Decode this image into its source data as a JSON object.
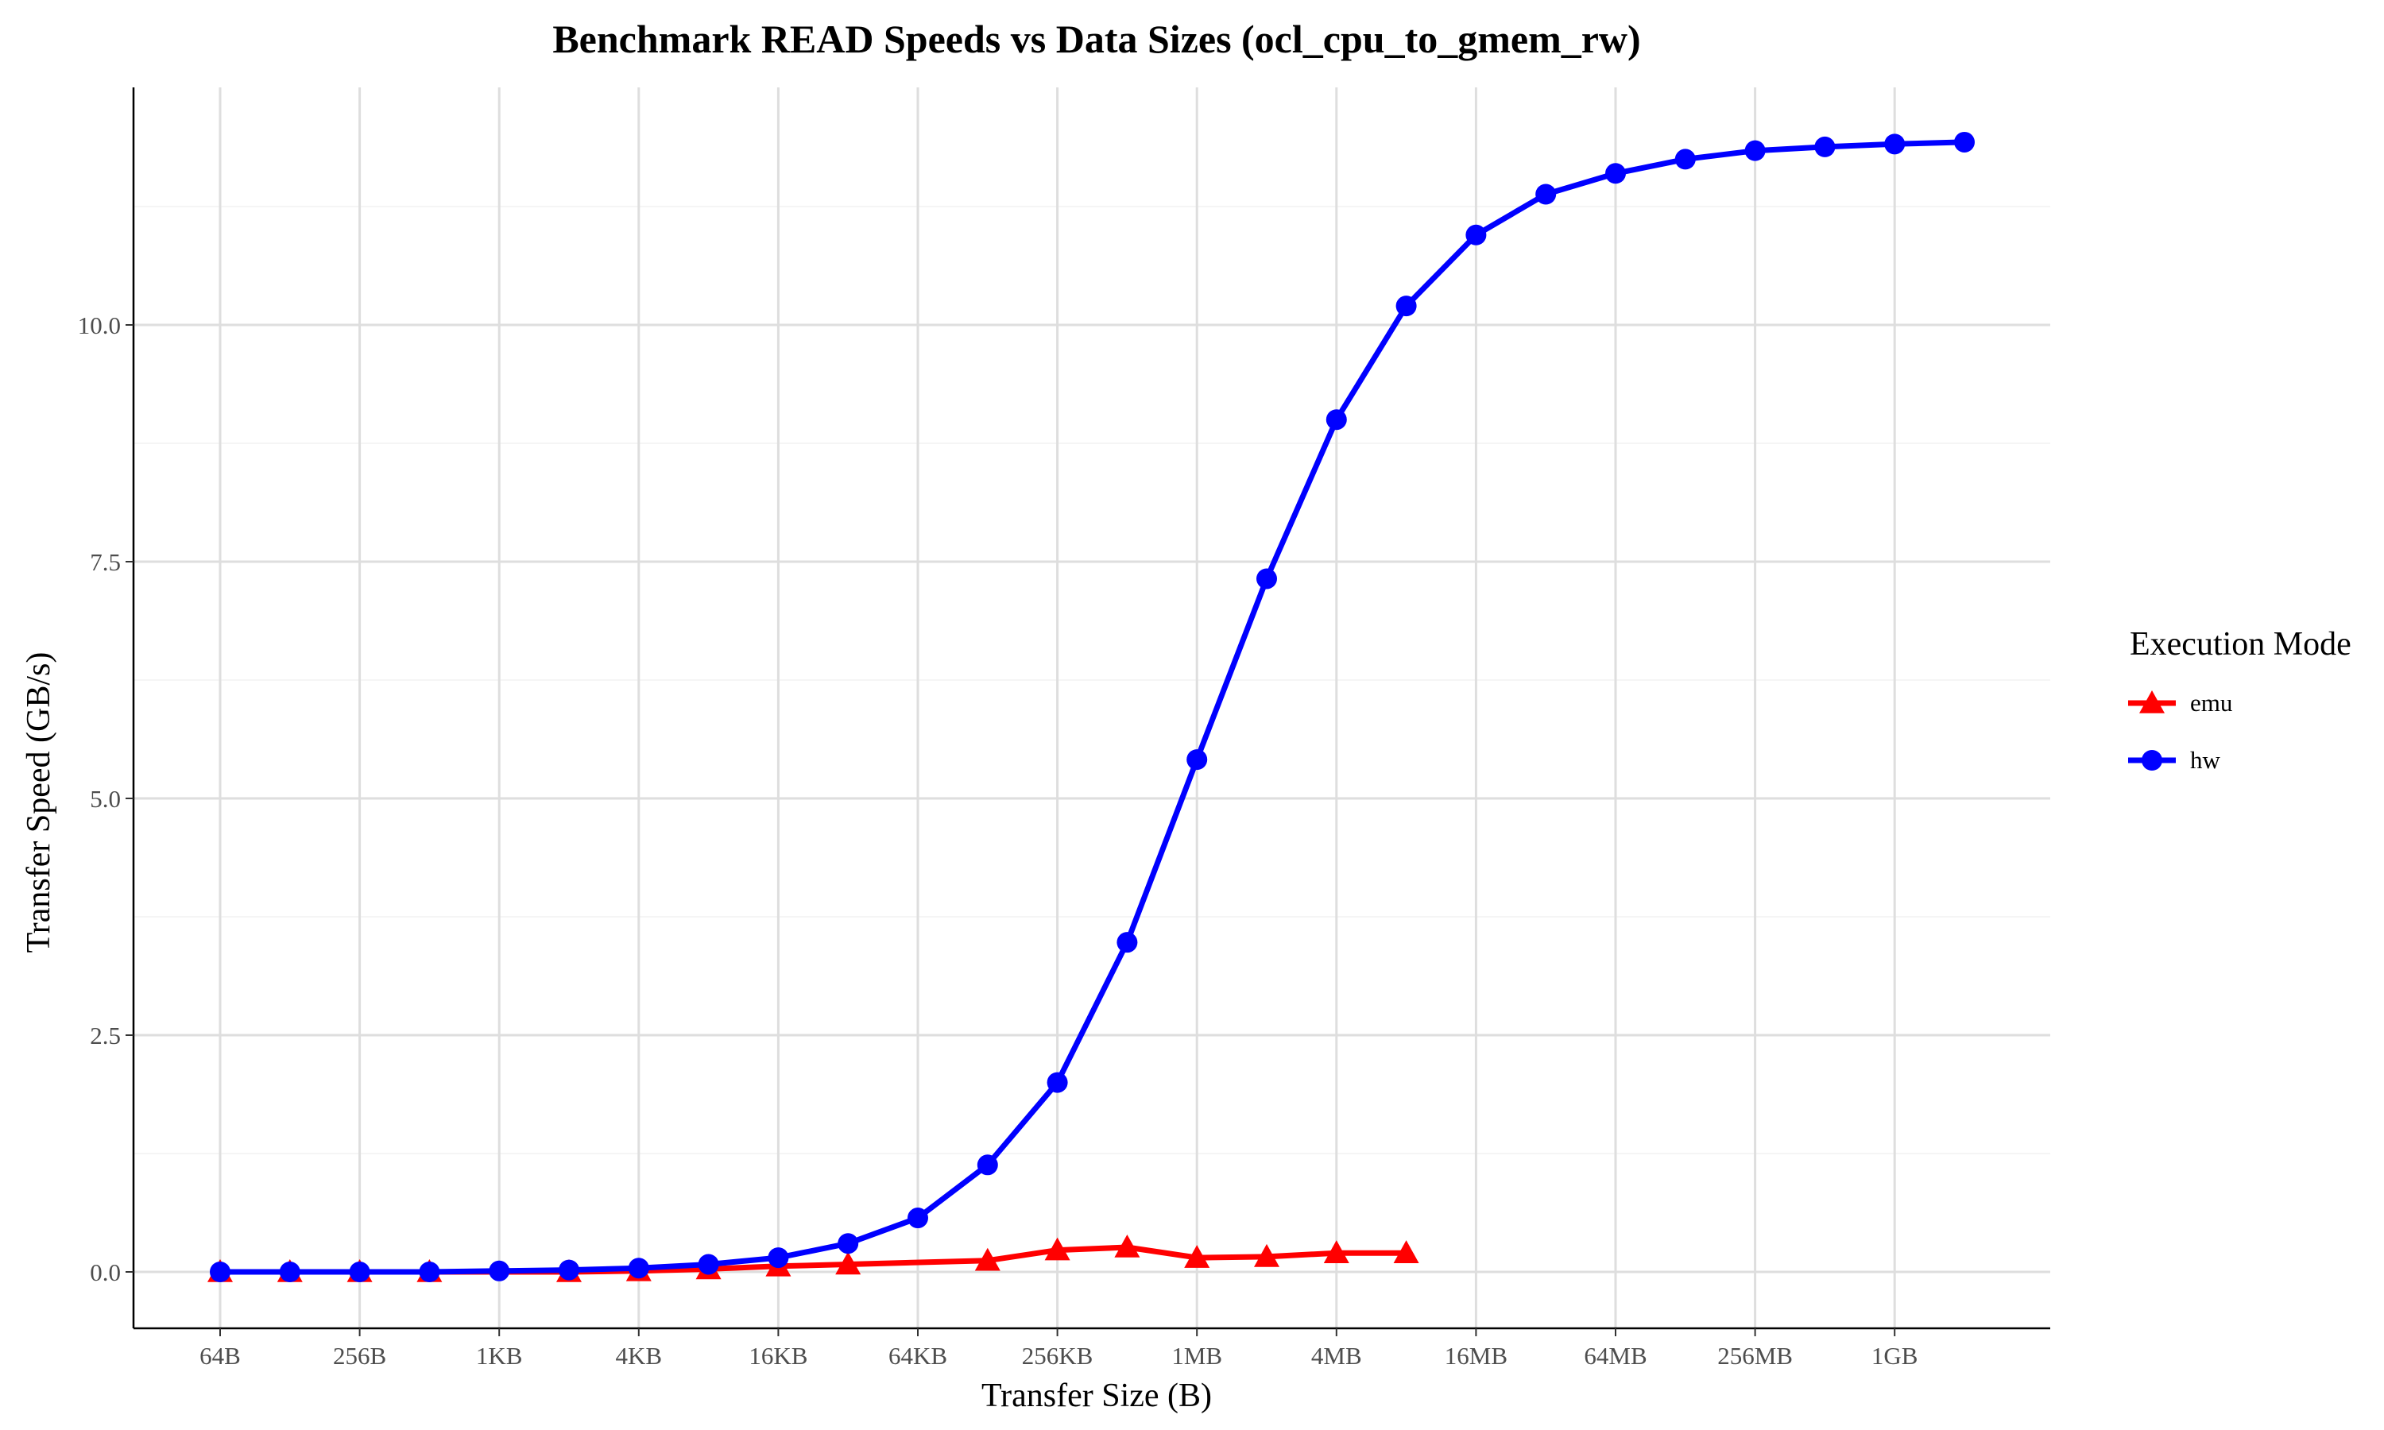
{
  "chart_data": {
    "type": "line",
    "title": "Benchmark READ Speeds vs Data Sizes (ocl_cpu_to_gmem_rw)",
    "xlabel": "Transfer Size (B)",
    "ylabel": "Transfer Speed (GB/s)",
    "x_scale": "log2",
    "x_unit": "bytes",
    "x": [
      64,
      128,
      256,
      512,
      1024,
      2048,
      4096,
      8192,
      16384,
      32768,
      65536,
      131072,
      262144,
      524288,
      1048576,
      2097152,
      4194304,
      8388608,
      16777216,
      33554432,
      67108864,
      134217728,
      268435456,
      536870912,
      1073741824,
      2147483648
    ],
    "x_ticks": [
      {
        "value": 64,
        "label": "64B"
      },
      {
        "value": 256,
        "label": "256B"
      },
      {
        "value": 1024,
        "label": "1KB"
      },
      {
        "value": 4096,
        "label": "4KB"
      },
      {
        "value": 16384,
        "label": "16KB"
      },
      {
        "value": 65536,
        "label": "64KB"
      },
      {
        "value": 262144,
        "label": "256KB"
      },
      {
        "value": 1048576,
        "label": "1MB"
      },
      {
        "value": 4194304,
        "label": "4MB"
      },
      {
        "value": 16777216,
        "label": "16MB"
      },
      {
        "value": 67108864,
        "label": "64MB"
      },
      {
        "value": 268435456,
        "label": "256MB"
      },
      {
        "value": 1073741824,
        "label": "1GB"
      }
    ],
    "y_ticks": [
      {
        "value": 0,
        "label": "0.0"
      },
      {
        "value": 2.5,
        "label": "2.5"
      },
      {
        "value": 5,
        "label": "5.0"
      },
      {
        "value": 7.5,
        "label": "7.5"
      },
      {
        "value": 10,
        "label": "10.0"
      }
    ],
    "ylim": [
      -0.6,
      12.55
    ],
    "grid": true,
    "legend": {
      "title": "Execution Mode",
      "position": "right"
    },
    "series": [
      {
        "name": "emu",
        "color": "#ff0000",
        "marker": "triangle",
        "points": [
          [
            64,
            0.0
          ],
          [
            128,
            0.0
          ],
          [
            256,
            0.0
          ],
          [
            512,
            0.0
          ],
          [
            2048,
            0.0
          ],
          [
            4096,
            0.01
          ],
          [
            8192,
            0.03
          ],
          [
            16384,
            0.06
          ],
          [
            32768,
            0.08
          ],
          [
            131072,
            0.12
          ],
          [
            262144,
            0.23
          ],
          [
            524288,
            0.26
          ],
          [
            1048576,
            0.15
          ],
          [
            2097152,
            0.16
          ],
          [
            4194304,
            0.2
          ],
          [
            8388608,
            0.2
          ]
        ]
      },
      {
        "name": "hw",
        "color": "#0000ff",
        "marker": "circle",
        "points": [
          [
            64,
            0.0
          ],
          [
            128,
            0.0
          ],
          [
            256,
            0.0
          ],
          [
            512,
            0.0
          ],
          [
            1024,
            0.01
          ],
          [
            2048,
            0.02
          ],
          [
            4096,
            0.04
          ],
          [
            8192,
            0.08
          ],
          [
            16384,
            0.15
          ],
          [
            32768,
            0.3
          ],
          [
            65536,
            0.57
          ],
          [
            131072,
            1.13
          ],
          [
            262144,
            2.0
          ],
          [
            524288,
            3.48
          ],
          [
            1048576,
            5.41
          ],
          [
            2097152,
            7.32
          ],
          [
            4194304,
            9.0
          ],
          [
            8388608,
            10.2
          ],
          [
            16777216,
            10.95
          ],
          [
            33554432,
            11.38
          ],
          [
            67108864,
            11.6
          ],
          [
            134217728,
            11.75
          ],
          [
            268435456,
            11.84
          ],
          [
            536870912,
            11.88
          ],
          [
            1073741824,
            11.91
          ],
          [
            2147483648,
            11.93
          ]
        ]
      }
    ]
  }
}
